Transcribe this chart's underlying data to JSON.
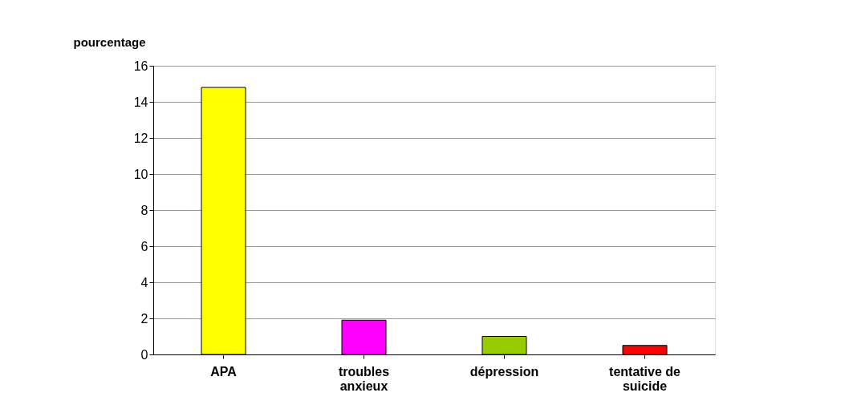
{
  "chart_data": {
    "type": "bar",
    "ylabel": "pourcentage",
    "categories": [
      "APA",
      "troubles anxieux",
      "dépression",
      "tentative de suicide"
    ],
    "values": [
      14.8,
      1.9,
      1.0,
      0.5
    ],
    "colors": [
      "#ffff00",
      "#ff00ff",
      "#99cc00",
      "#ff0000"
    ],
    "ylim": [
      0,
      16
    ],
    "yticks": [
      0,
      2,
      4,
      6,
      8,
      10,
      12,
      14,
      16
    ],
    "grid": "y"
  }
}
